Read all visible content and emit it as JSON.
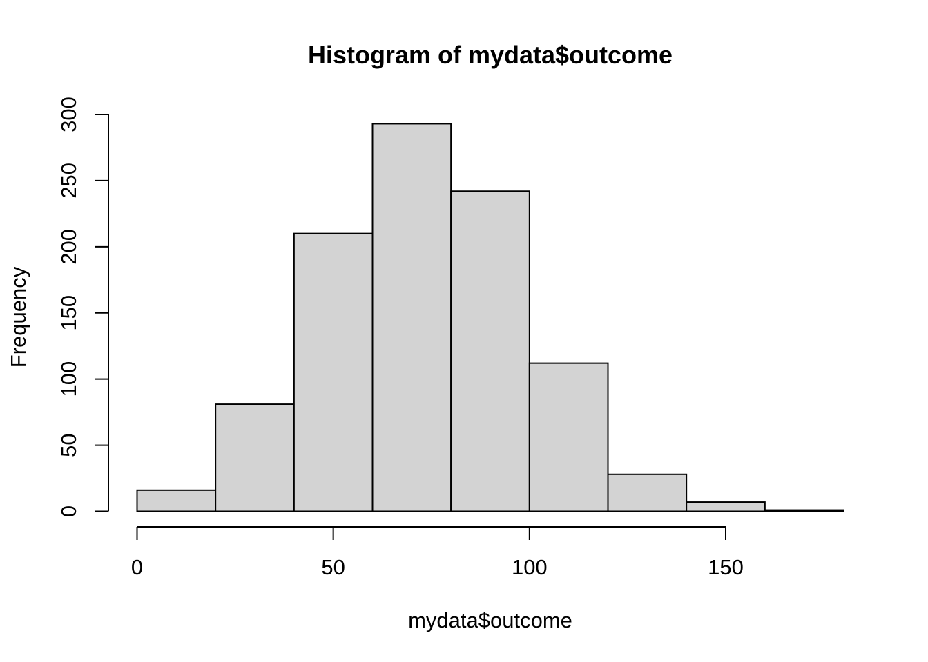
{
  "chart_data": {
    "type": "bar",
    "title": "Histogram of mydata$outcome",
    "xlabel": "mydata$outcome",
    "ylabel": "Frequency",
    "bins": [
      {
        "start": 0,
        "end": 20,
        "count": 16
      },
      {
        "start": 20,
        "end": 40,
        "count": 81
      },
      {
        "start": 40,
        "end": 60,
        "count": 210
      },
      {
        "start": 60,
        "end": 80,
        "count": 293
      },
      {
        "start": 80,
        "end": 100,
        "count": 242
      },
      {
        "start": 100,
        "end": 120,
        "count": 112
      },
      {
        "start": 120,
        "end": 140,
        "count": 28
      },
      {
        "start": 140,
        "end": 160,
        "count": 7
      },
      {
        "start": 160,
        "end": 180,
        "count": 1
      }
    ],
    "xlim": [
      0,
      180
    ],
    "ylim": [
      0,
      300
    ],
    "xticks": [
      0,
      50,
      100,
      150
    ],
    "yticks": [
      0,
      50,
      100,
      150,
      200,
      250,
      300
    ],
    "xtick_labels": [
      "0",
      "50",
      "100",
      "150"
    ],
    "ytick_labels": [
      "0",
      "50",
      "100",
      "150",
      "200",
      "250",
      "300"
    ],
    "grid": false,
    "legend": "none",
    "colors": {
      "bar_fill": "#d3d3d3",
      "bar_stroke": "#000000"
    }
  }
}
